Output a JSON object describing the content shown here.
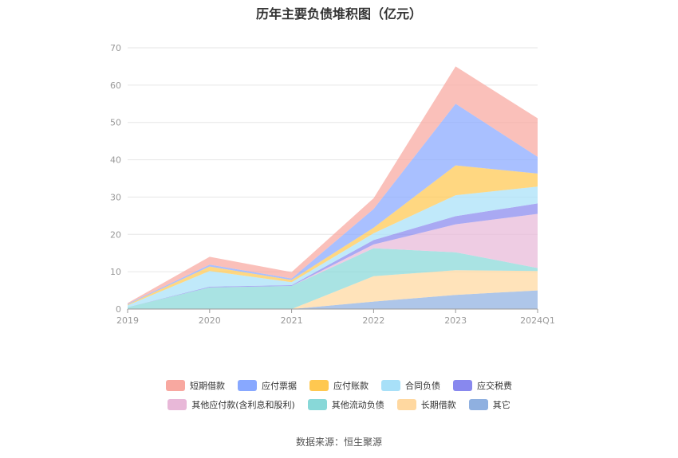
{
  "chart_data": {
    "type": "area",
    "stacked": true,
    "title": "历年主要负债堆积图（亿元）",
    "source": "数据来源：恒生聚源",
    "categories": [
      "2019",
      "2020",
      "2021",
      "2022",
      "2023",
      "2024Q1"
    ],
    "yticks": [
      "0",
      "10",
      "20",
      "30",
      "40",
      "50",
      "60",
      "70"
    ],
    "ylim": [
      0,
      70
    ],
    "grid": true,
    "legend_position": "bottom",
    "series": [
      {
        "name": "其它",
        "color": "#8fb0e0",
        "values": [
          0,
          0,
          0,
          2.0,
          3.8,
          5.0
        ]
      },
      {
        "name": "长期借款",
        "color": "#ffd8a0",
        "values": [
          0,
          0,
          0,
          6.8,
          6.6,
          5.2
        ]
      },
      {
        "name": "其他流动负债",
        "color": "#88d8d8",
        "values": [
          0.5,
          5.8,
          6.2,
          7.5,
          4.8,
          0.8
        ]
      },
      {
        "name": "其他应付款(含利息和股利)",
        "color": "#e8b8d8",
        "values": [
          0,
          0,
          0,
          1.0,
          7.5,
          14.5
        ]
      },
      {
        "name": "应交税费",
        "color": "#8888ee",
        "values": [
          0,
          0.2,
          0.2,
          1.2,
          2.2,
          2.8
        ]
      },
      {
        "name": "合同负债",
        "color": "#a8e0f8",
        "values": [
          0.5,
          4.2,
          0.8,
          1.8,
          5.6,
          4.5
        ]
      },
      {
        "name": "应付账款",
        "color": "#ffc850",
        "values": [
          0.2,
          1.2,
          0.6,
          1.5,
          8.0,
          3.5
        ]
      },
      {
        "name": "应付票据",
        "color": "#88a8ff",
        "values": [
          0.2,
          0.5,
          0.4,
          5.0,
          16.5,
          4.5
        ]
      },
      {
        "name": "短期借款",
        "color": "#f8a8a0",
        "values": [
          0.2,
          2.1,
          1.7,
          2.9,
          10.0,
          10.3
        ]
      }
    ],
    "legend_rows": [
      [
        "短期借款",
        "应付票据",
        "应付账款",
        "合同负债",
        "应交税费"
      ],
      [
        "其他应付款(含利息和股利)",
        "其他流动负债",
        "长期借款",
        "其它"
      ]
    ]
  }
}
